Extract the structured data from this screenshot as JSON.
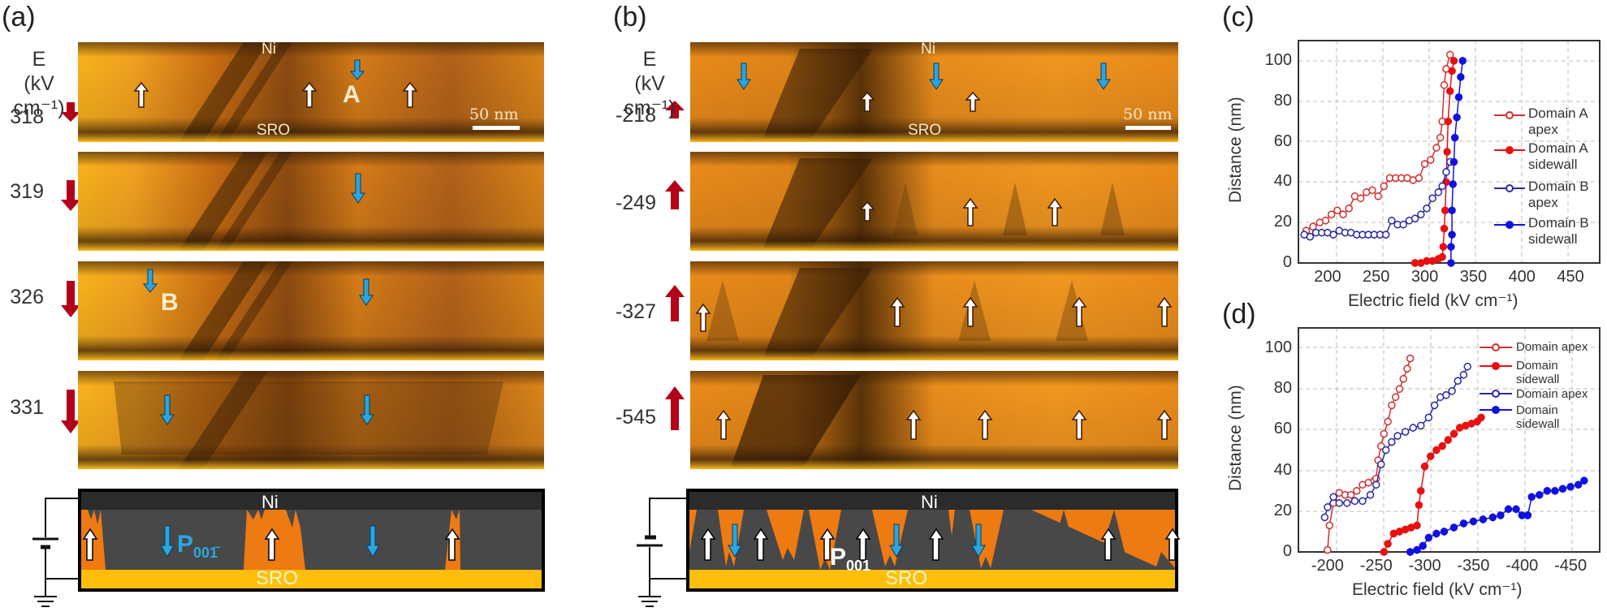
{
  "panels": {
    "a": {
      "label": "(a)",
      "e_header": "E",
      "e_unit": "(kV cm⁻¹)",
      "rows": [
        {
          "field": "318",
          "arrow": "down",
          "arrow_size": "small"
        },
        {
          "field": "319",
          "arrow": "down",
          "arrow_size": "medium"
        },
        {
          "field": "326",
          "arrow": "down",
          "arrow_size": "medium"
        },
        {
          "field": "331",
          "arrow": "down",
          "arrow_size": "large"
        }
      ],
      "image_labels": {
        "top": "Ni",
        "bottom": "SRO",
        "domain_a": "A",
        "domain_b": "B",
        "scale_bar": "50 nm"
      },
      "schematic": {
        "top_layer": "Ni",
        "bottom_layer": "SRO",
        "polarization_label": "P",
        "polarization_subscript": "001̄"
      }
    },
    "b": {
      "label": "(b)",
      "e_header": "E",
      "e_unit": "(kV cm⁻¹)",
      "rows": [
        {
          "field": "-218",
          "arrow": "up",
          "arrow_size": "small"
        },
        {
          "field": "-249",
          "arrow": "up",
          "arrow_size": "medium"
        },
        {
          "field": "-327",
          "arrow": "up",
          "arrow_size": "medium"
        },
        {
          "field": "-545",
          "arrow": "up",
          "arrow_size": "large"
        }
      ],
      "image_labels": {
        "top": "Ni",
        "bottom": "SRO",
        "scale_bar": "50 nm"
      },
      "schematic": {
        "top_layer": "Ni",
        "bottom_layer": "SRO",
        "polarization_label": "P",
        "polarization_subscript": "001"
      }
    },
    "c": {
      "label": "(c)"
    },
    "d": {
      "label": "(d)"
    }
  },
  "colors": {
    "tem_orange": "#e88a1a",
    "tem_dark": "#4a2a08",
    "field_arrow": "#b3001b",
    "domain_down_arrow": "#2aa6e0",
    "schematic_ni": "#2b2b2b",
    "schematic_film": "#484848",
    "schematic_domain": "#ee7a12",
    "schematic_sro": "#ffbe0a",
    "red_series": "#e02020",
    "blue_series": "#1a1ad0"
  },
  "chart_data": [
    {
      "id": "c",
      "type": "scatter",
      "title": "",
      "xlabel": "Electric field (kV cm⁻¹)",
      "ylabel": "Distance (nm)",
      "xlim": [
        170,
        480
      ],
      "ylim": [
        0,
        110
      ],
      "xticks": [
        200,
        250,
        300,
        350,
        400,
        450
      ],
      "yticks": [
        0,
        20,
        40,
        60,
        80,
        100
      ],
      "grid": true,
      "legend_position": "right-inside",
      "series": [
        {
          "name": "Domain A apex",
          "marker": "open-circle",
          "color": "#d03030",
          "x": [
            178,
            185,
            192,
            198,
            204,
            210,
            216,
            222,
            228,
            234,
            240,
            246,
            252,
            258,
            264,
            270,
            276,
            282,
            288,
            294,
            300,
            306,
            312,
            316,
            318,
            320,
            322,
            326
          ],
          "y": [
            16,
            18,
            20,
            21,
            24,
            26,
            24,
            27,
            33,
            32,
            35,
            36,
            33,
            38,
            42,
            42,
            42,
            42,
            41,
            42,
            49,
            51,
            57,
            62,
            70,
            88,
            96,
            103
          ]
        },
        {
          "name": "Domain A sidewall",
          "marker": "filled-circle",
          "color": "#e81010",
          "x": [
            290,
            296,
            302,
            308,
            314,
            318,
            319,
            320,
            321,
            322,
            323,
            324,
            326,
            328,
            330
          ],
          "y": [
            0,
            0,
            1,
            1,
            2,
            3,
            8,
            17,
            26,
            40,
            55,
            70,
            85,
            95,
            100
          ]
        },
        {
          "name": "Domain B apex",
          "marker": "open-circle",
          "color": "#2a2aa0",
          "x": [
            176,
            182,
            188,
            194,
            200,
            206,
            212,
            218,
            224,
            230,
            236,
            242,
            248,
            254,
            260,
            266,
            272,
            278,
            284,
            290,
            296,
            302,
            308,
            314,
            318,
            322,
            326
          ],
          "y": [
            14,
            13,
            15,
            15,
            15,
            14,
            16,
            15,
            15,
            14,
            14,
            14,
            14,
            14,
            14,
            21,
            19,
            19,
            21,
            22,
            24,
            27,
            32,
            35,
            38,
            45,
            50
          ]
        },
        {
          "name": "Domain B sidewall",
          "marker": "filled-circle",
          "color": "#1010e0",
          "x": [
            327,
            327,
            328,
            328,
            329,
            330,
            331,
            333,
            335,
            337,
            339
          ],
          "y": [
            0,
            8,
            14,
            26,
            39,
            50,
            62,
            72,
            82,
            92,
            100
          ]
        }
      ]
    },
    {
      "id": "d",
      "type": "scatter",
      "title": "",
      "xlabel": "Electric field (kV cm⁻¹)",
      "ylabel": "Distance (nm)",
      "xlim": [
        -170,
        -480
      ],
      "ylim": [
        0,
        110
      ],
      "xticks": [
        -200,
        -250,
        -300,
        -350,
        -400,
        -450
      ],
      "yticks": [
        0,
        20,
        40,
        60,
        80,
        100
      ],
      "grid": true,
      "legend_position": "upper-right-inside",
      "series": [
        {
          "name": "Domain apex",
          "marker": "open-circle",
          "color": "#d03030",
          "x": [
            -200,
            -202,
            -206,
            -212,
            -218,
            -224,
            -230,
            -236,
            -242,
            -248,
            -250,
            -252,
            -255,
            -258,
            -262,
            -266,
            -270,
            -274,
            -278,
            -282,
            -285
          ],
          "y": [
            1,
            13,
            24,
            29,
            28,
            28,
            30,
            33,
            34,
            35,
            36,
            45,
            52,
            58,
            64,
            72,
            76,
            80,
            85,
            90,
            95
          ]
        },
        {
          "name": "Domain sidewall",
          "marker": "filled-circle",
          "color": "#e81010",
          "x": [
            -258,
            -262,
            -268,
            -274,
            -280,
            -286,
            -292,
            -294,
            -296,
            -300,
            -306,
            -312,
            -318,
            -324,
            -330,
            -336,
            -342,
            -348,
            -354,
            -358
          ],
          "y": [
            0,
            4,
            9,
            10,
            11,
            12,
            13,
            23,
            30,
            42,
            47,
            50,
            52,
            55,
            58,
            61,
            62,
            63,
            64,
            66
          ]
        },
        {
          "name": "Domain apex",
          "marker": "open-circle",
          "color": "#2a2aa0",
          "x": [
            -197,
            -200,
            -206,
            -212,
            -220,
            -228,
            -236,
            -244,
            -250,
            -255,
            -260,
            -266,
            -272,
            -280,
            -288,
            -296,
            -304,
            -310,
            -316,
            -322,
            -328,
            -334,
            -340,
            -344
          ],
          "y": [
            17,
            22,
            27,
            24,
            24,
            25,
            25,
            28,
            33,
            43,
            50,
            54,
            57,
            59,
            61,
            62,
            66,
            72,
            76,
            77,
            79,
            84,
            87,
            91
          ]
        },
        {
          "name": "Domain sidewall",
          "marker": "filled-circle",
          "color": "#1010e0",
          "x": [
            -285,
            -292,
            -298,
            -304,
            -312,
            -320,
            -330,
            -340,
            -350,
            -360,
            -370,
            -378,
            -386,
            -394,
            -400,
            -406,
            -410,
            -418,
            -426,
            -434,
            -442,
            -450,
            -458,
            -464
          ],
          "y": [
            0,
            1,
            3,
            7,
            9,
            10,
            12,
            14,
            15,
            16,
            17,
            18,
            21,
            21,
            18,
            18,
            27,
            28,
            30,
            30,
            31,
            32,
            33,
            35
          ]
        }
      ]
    }
  ]
}
